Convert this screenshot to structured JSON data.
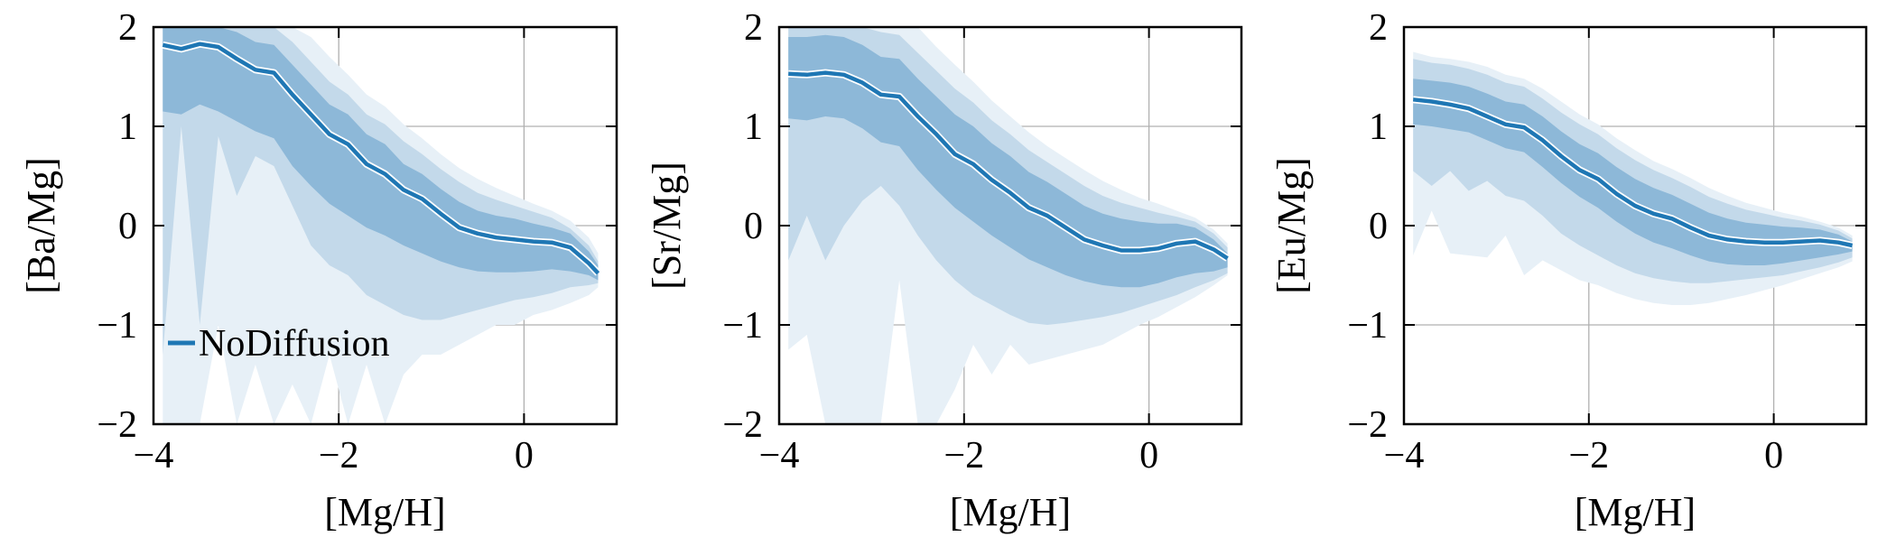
{
  "colors": {
    "line": "#1f77b4",
    "band_outer": "#e7f0f7",
    "band_95": "#c3d9ea",
    "band_68": "#8db8d8",
    "grid": "#b0b0b0",
    "axis": "#000000"
  },
  "chart_data": [
    {
      "type": "area",
      "xlabel": "[Mg/H]",
      "ylabel": "[Ba/Mg]",
      "xlim": [
        -4,
        1
      ],
      "ylim": [
        -2,
        2
      ],
      "xticks": [
        -4,
        -2,
        0
      ],
      "xtick_labels": [
        "−4",
        "−2",
        "0"
      ],
      "yticks": [
        -2,
        -1,
        0,
        1,
        2
      ],
      "ytick_labels": [
        "−2",
        "−1",
        "0",
        "1",
        "2"
      ],
      "grid": true,
      "legend": {
        "position": "lower-left",
        "entries": [
          "NoDiffusion"
        ]
      },
      "x": [
        -3.9,
        -3.7,
        -3.5,
        -3.3,
        -3.1,
        -2.9,
        -2.7,
        -2.5,
        -2.3,
        -2.1,
        -1.9,
        -1.7,
        -1.5,
        -1.3,
        -1.1,
        -0.9,
        -0.7,
        -0.5,
        -0.3,
        -0.1,
        0.1,
        0.3,
        0.5,
        0.7,
        0.8
      ],
      "series": [
        {
          "name": "NoDiffusion",
          "median": [
            1.82,
            1.78,
            1.83,
            1.8,
            1.68,
            1.57,
            1.54,
            1.32,
            1.12,
            0.92,
            0.82,
            0.62,
            0.52,
            0.36,
            0.27,
            0.12,
            -0.02,
            -0.08,
            -0.12,
            -0.14,
            -0.16,
            -0.17,
            -0.22,
            -0.38,
            -0.48
          ],
          "band_68_upper": [
            2.0,
            2.0,
            2.0,
            2.0,
            1.95,
            1.85,
            1.82,
            1.62,
            1.42,
            1.22,
            1.12,
            0.92,
            0.82,
            0.62,
            0.52,
            0.37,
            0.24,
            0.15,
            0.1,
            0.07,
            0.02,
            -0.02,
            -0.08,
            -0.26,
            -0.4
          ],
          "band_68_lower": [
            1.15,
            1.12,
            1.22,
            1.15,
            1.05,
            0.95,
            0.88,
            0.6,
            0.4,
            0.22,
            0.1,
            -0.02,
            -0.1,
            -0.2,
            -0.28,
            -0.36,
            -0.42,
            -0.46,
            -0.47,
            -0.47,
            -0.46,
            -0.44,
            -0.46,
            -0.5,
            -0.55
          ],
          "band_95_upper": [
            2.0,
            2.0,
            2.0,
            2.0,
            2.0,
            2.0,
            2.0,
            1.85,
            1.65,
            1.45,
            1.32,
            1.12,
            1.02,
            0.85,
            0.72,
            0.57,
            0.44,
            0.33,
            0.26,
            0.2,
            0.14,
            0.08,
            -0.03,
            -0.2,
            -0.36
          ],
          "band_95_lower": [
            -1.3,
            1.0,
            -1.0,
            0.9,
            0.3,
            0.7,
            0.6,
            0.2,
            -0.2,
            -0.4,
            -0.5,
            -0.7,
            -0.8,
            -0.9,
            -0.95,
            -0.95,
            -0.9,
            -0.85,
            -0.8,
            -0.75,
            -0.72,
            -0.68,
            -0.62,
            -0.6,
            -0.58
          ],
          "band_outer_upper": [
            2.0,
            2.0,
            2.0,
            2.0,
            2.0,
            2.0,
            2.0,
            2.0,
            1.9,
            1.7,
            1.52,
            1.32,
            1.2,
            1.02,
            0.88,
            0.72,
            0.58,
            0.47,
            0.38,
            0.3,
            0.22,
            0.15,
            0.05,
            -0.12,
            -0.28
          ],
          "band_outer_lower": [
            -2.0,
            -2.0,
            -2.0,
            -1.0,
            -2.0,
            -1.4,
            -2.0,
            -1.6,
            -2.0,
            -1.3,
            -2.0,
            -1.4,
            -2.0,
            -1.5,
            -1.3,
            -1.3,
            -1.2,
            -1.1,
            -1.0,
            -1.0,
            -0.9,
            -0.85,
            -0.78,
            -0.7,
            -0.62
          ]
        }
      ]
    },
    {
      "type": "area",
      "xlabel": "[Mg/H]",
      "ylabel": "[Sr/Mg]",
      "xlim": [
        -4,
        1
      ],
      "ylim": [
        -2,
        2
      ],
      "xticks": [
        -4,
        -2,
        0
      ],
      "xtick_labels": [
        "−4",
        "−2",
        "0"
      ],
      "yticks": [
        -2,
        -1,
        0,
        1,
        2
      ],
      "ytick_labels": [
        "−2",
        "−1",
        "0",
        "1",
        "2"
      ],
      "grid": true,
      "x": [
        -3.9,
        -3.7,
        -3.5,
        -3.3,
        -3.1,
        -2.9,
        -2.7,
        -2.5,
        -2.3,
        -2.1,
        -1.9,
        -1.7,
        -1.5,
        -1.3,
        -1.1,
        -0.9,
        -0.7,
        -0.5,
        -0.3,
        -0.1,
        0.1,
        0.3,
        0.5,
        0.7,
        0.85
      ],
      "series": [
        {
          "name": "NoDiffusion",
          "median": [
            1.53,
            1.52,
            1.54,
            1.52,
            1.44,
            1.32,
            1.3,
            1.1,
            0.92,
            0.72,
            0.62,
            0.46,
            0.33,
            0.18,
            0.1,
            -0.02,
            -0.14,
            -0.2,
            -0.25,
            -0.25,
            -0.23,
            -0.18,
            -0.16,
            -0.24,
            -0.33
          ],
          "band_68_upper": [
            1.9,
            1.9,
            1.92,
            1.9,
            1.82,
            1.7,
            1.68,
            1.48,
            1.3,
            1.12,
            1.0,
            0.83,
            0.7,
            0.54,
            0.44,
            0.32,
            0.2,
            0.12,
            0.07,
            0.04,
            0.02,
            0.02,
            -0.02,
            -0.14,
            -0.28
          ],
          "band_68_lower": [
            1.08,
            1.06,
            1.1,
            1.08,
            0.98,
            0.84,
            0.8,
            0.56,
            0.36,
            0.18,
            0.04,
            -0.1,
            -0.22,
            -0.34,
            -0.42,
            -0.5,
            -0.56,
            -0.6,
            -0.62,
            -0.62,
            -0.58,
            -0.52,
            -0.48,
            -0.46,
            -0.42
          ],
          "band_95_upper": [
            2.0,
            2.0,
            2.0,
            2.0,
            2.0,
            1.95,
            1.92,
            1.74,
            1.56,
            1.38,
            1.24,
            1.06,
            0.92,
            0.76,
            0.64,
            0.52,
            0.4,
            0.3,
            0.23,
            0.18,
            0.13,
            0.09,
            0.04,
            -0.08,
            -0.22
          ],
          "band_95_lower": [
            -0.35,
            0.1,
            -0.35,
            0.0,
            0.25,
            0.4,
            0.2,
            -0.1,
            -0.35,
            -0.55,
            -0.7,
            -0.8,
            -0.9,
            -0.98,
            -1.0,
            -0.98,
            -0.95,
            -0.92,
            -0.88,
            -0.82,
            -0.76,
            -0.7,
            -0.62,
            -0.55,
            -0.48
          ],
          "band_outer_upper": [
            2.0,
            2.0,
            2.0,
            2.0,
            2.0,
            2.0,
            2.0,
            2.0,
            1.8,
            1.62,
            1.45,
            1.26,
            1.1,
            0.94,
            0.8,
            0.68,
            0.56,
            0.45,
            0.36,
            0.28,
            0.22,
            0.15,
            0.08,
            -0.04,
            -0.18
          ],
          "band_outer_lower": [
            -1.25,
            -1.1,
            -2.0,
            -2.0,
            -2.0,
            -2.0,
            -0.55,
            -2.0,
            -2.0,
            -1.65,
            -1.2,
            -1.5,
            -1.2,
            -1.4,
            -1.35,
            -1.3,
            -1.25,
            -1.2,
            -1.1,
            -1.0,
            -0.92,
            -0.82,
            -0.72,
            -0.6,
            -0.5
          ]
        }
      ]
    },
    {
      "type": "area",
      "xlabel": "[Mg/H]",
      "ylabel": "[Eu/Mg]",
      "xlim": [
        -4,
        1
      ],
      "ylim": [
        -2,
        2
      ],
      "xticks": [
        -4,
        -2,
        0
      ],
      "xtick_labels": [
        "−4",
        "−2",
        "0"
      ],
      "yticks": [
        -2,
        -1,
        0,
        1,
        2
      ],
      "ytick_labels": [
        "−2",
        "−1",
        "0",
        "1",
        "2"
      ],
      "grid": true,
      "x": [
        -3.9,
        -3.7,
        -3.5,
        -3.3,
        -3.1,
        -2.9,
        -2.7,
        -2.5,
        -2.3,
        -2.1,
        -1.9,
        -1.7,
        -1.5,
        -1.3,
        -1.1,
        -0.9,
        -0.7,
        -0.5,
        -0.3,
        -0.1,
        0.1,
        0.3,
        0.5,
        0.7,
        0.85
      ],
      "series": [
        {
          "name": "NoDiffusion",
          "median": [
            1.27,
            1.25,
            1.22,
            1.18,
            1.1,
            1.02,
            0.99,
            0.86,
            0.7,
            0.56,
            0.47,
            0.32,
            0.2,
            0.12,
            0.07,
            -0.02,
            -0.1,
            -0.14,
            -0.16,
            -0.17,
            -0.17,
            -0.16,
            -0.15,
            -0.17,
            -0.2
          ],
          "band_68_upper": [
            1.48,
            1.46,
            1.44,
            1.4,
            1.33,
            1.25,
            1.22,
            1.1,
            0.95,
            0.82,
            0.73,
            0.59,
            0.47,
            0.38,
            0.31,
            0.22,
            0.13,
            0.07,
            0.03,
            0.01,
            -0.01,
            -0.02,
            -0.04,
            -0.09,
            -0.16
          ],
          "band_68_lower": [
            1.02,
            1.0,
            0.97,
            0.94,
            0.86,
            0.78,
            0.74,
            0.59,
            0.43,
            0.29,
            0.18,
            0.04,
            -0.08,
            -0.17,
            -0.23,
            -0.3,
            -0.36,
            -0.39,
            -0.4,
            -0.4,
            -0.38,
            -0.35,
            -0.32,
            -0.29,
            -0.26
          ],
          "band_95_upper": [
            1.68,
            1.64,
            1.62,
            1.58,
            1.52,
            1.44,
            1.4,
            1.28,
            1.14,
            1.02,
            0.92,
            0.78,
            0.66,
            0.56,
            0.48,
            0.39,
            0.29,
            0.22,
            0.16,
            0.12,
            0.08,
            0.05,
            0.01,
            -0.05,
            -0.13
          ],
          "band_95_lower": [
            0.55,
            0.4,
            0.55,
            0.35,
            0.45,
            0.3,
            0.25,
            0.1,
            -0.08,
            -0.2,
            -0.3,
            -0.4,
            -0.48,
            -0.53,
            -0.56,
            -0.58,
            -0.58,
            -0.56,
            -0.54,
            -0.52,
            -0.5,
            -0.46,
            -0.42,
            -0.37,
            -0.32
          ],
          "band_outer_upper": [
            1.75,
            1.7,
            1.68,
            1.65,
            1.6,
            1.52,
            1.48,
            1.38,
            1.25,
            1.12,
            1.02,
            0.88,
            0.76,
            0.65,
            0.57,
            0.48,
            0.38,
            0.3,
            0.23,
            0.18,
            0.13,
            0.09,
            0.04,
            -0.02,
            -0.1
          ],
          "band_outer_lower": [
            -0.3,
            0.15,
            -0.28,
            -0.3,
            -0.32,
            -0.1,
            -0.5,
            -0.35,
            -0.45,
            -0.55,
            -0.6,
            -0.68,
            -0.74,
            -0.78,
            -0.8,
            -0.8,
            -0.78,
            -0.74,
            -0.7,
            -0.65,
            -0.6,
            -0.54,
            -0.48,
            -0.42,
            -0.36
          ]
        }
      ]
    }
  ]
}
